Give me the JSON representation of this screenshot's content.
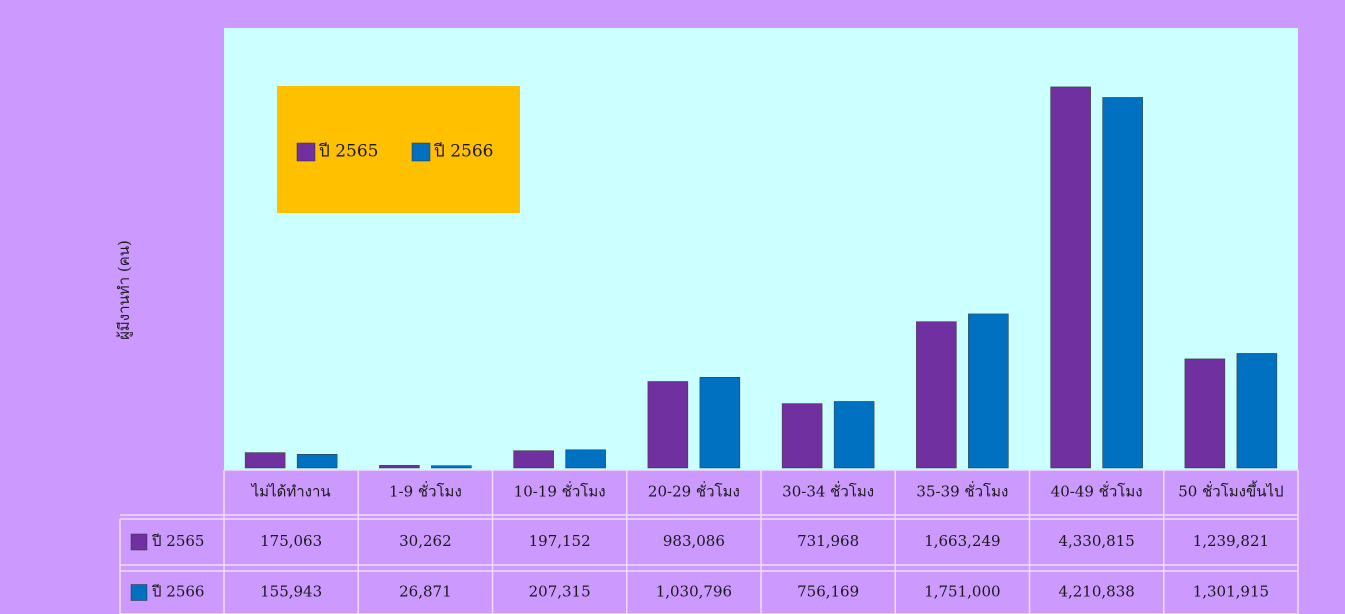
{
  "chart_data": {
    "type": "bar",
    "ylabel": "ผู้มีงานทำ (คน)",
    "categories": [
      "ไม่ได้ทำงาน",
      "1-9 ชั่วโมง",
      "10-19 ชั่วโมง",
      "20-29 ชั่วโมง",
      "30-34 ชั่วโมง",
      "35-39 ชั่วโมง",
      "40-49 ชั่วโมง",
      "50 ชั่วโมงขึ้นไป"
    ],
    "series": [
      {
        "name": "ปี 2565",
        "color": "#7030a0",
        "values": [
          175063,
          30262,
          197152,
          983086,
          731968,
          1663249,
          4330815,
          1239821
        ],
        "value_labels": [
          "175,063",
          "30,262",
          "197,152",
          "983,086",
          "731,968",
          "1,663,249",
          "4,330,815",
          "1,239,821"
        ]
      },
      {
        "name": "ปี 2566",
        "color": "#0070c0",
        "values": [
          155943,
          26871,
          207315,
          1030796,
          756169,
          1751000,
          4210838,
          1301915
        ],
        "value_labels": [
          "155,943",
          "26,871",
          "207,315",
          "1,030,796",
          "756,169",
          "1,751,000",
          "4,210,838",
          "1,301,915"
        ]
      }
    ],
    "ylim": [
      0,
      5000000
    ],
    "grid": false
  }
}
